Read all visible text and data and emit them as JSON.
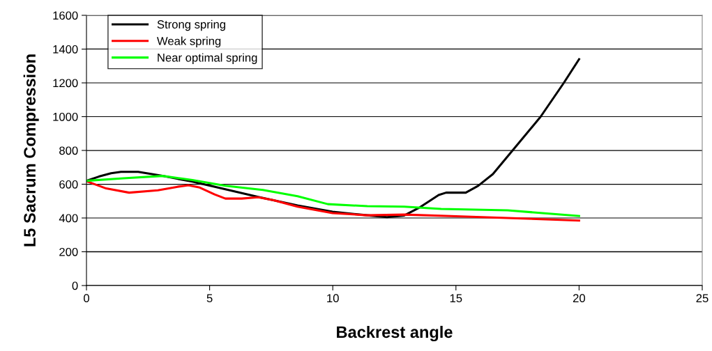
{
  "chart_data": {
    "type": "line",
    "xlabel": "Backrest angle",
    "ylabel": "L5 Sacrum Compression",
    "xlim": [
      0,
      25
    ],
    "xticks": [
      0,
      5,
      10,
      15,
      20,
      25
    ],
    "ylim": [
      0,
      1600
    ],
    "yticks": [
      0,
      200,
      400,
      600,
      800,
      1000,
      1200,
      1400,
      1600
    ],
    "grid": "y",
    "legend": "top left",
    "marker": "none",
    "line_style": "solid",
    "series": [
      {
        "name": "Strong spring",
        "color": "#000000",
        "x": [
          0,
          0.5,
          1,
          1.4,
          2.1,
          3.09,
          4.3,
          5.64,
          6.97,
          8.57,
          9.99,
          11.4,
          12.2,
          12.9,
          13.5,
          14.3,
          14.6,
          15.4,
          15.9,
          16.5,
          17.3,
          18.44,
          19.38,
          20
        ],
        "values": [
          620,
          645,
          665,
          673,
          673,
          649,
          615,
          570,
          525,
          474,
          437,
          416,
          405,
          415,
          460,
          536,
          550,
          550,
          590,
          660,
          800,
          1000,
          1200,
          1340
        ]
      },
      {
        "name": "Weak spring",
        "color": "#ff0000",
        "x": [
          0,
          0.8,
          1.73,
          2.9,
          3.7,
          4.14,
          4.6,
          5.2,
          5.64,
          6.3,
          6.97,
          7.6,
          8.57,
          9.99,
          11.4,
          12.9,
          15,
          17.5,
          20
        ],
        "values": [
          618,
          575,
          550,
          564,
          585,
          594,
          580,
          540,
          515,
          515,
          523,
          505,
          467,
          429,
          416,
          420,
          410,
          398,
          385
        ]
      },
      {
        "name": "Near optimal spring",
        "color": "#00ff00",
        "x": [
          0,
          1.5,
          3.09,
          4.3,
          5.64,
          7.16,
          8.57,
          9.8,
          11.4,
          12.9,
          14.4,
          17.1,
          20
        ],
        "values": [
          620,
          635,
          649,
          625,
          591,
          566,
          529,
          482,
          470,
          467,
          454,
          445,
          412
        ]
      }
    ]
  }
}
